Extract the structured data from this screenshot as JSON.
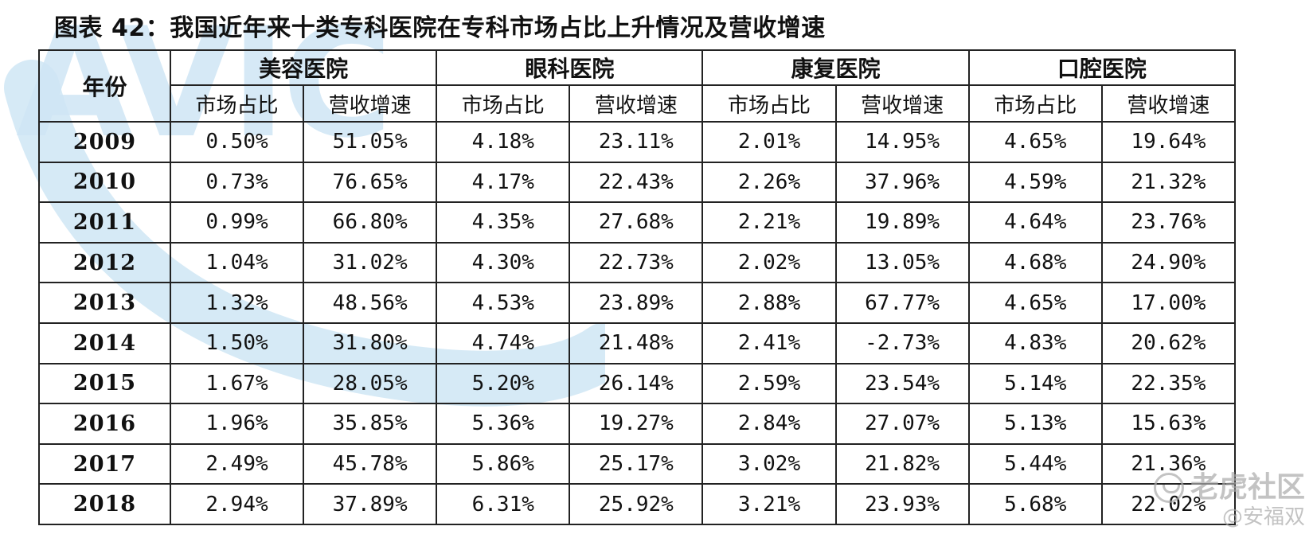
{
  "title": "图表 42：我国近年来十类专科医院在专科市场占比上升情况及营收增速",
  "watermark": {
    "logo_text": "AVIC",
    "brand": "老虎社区",
    "user": "@安福双",
    "logo_color": "#cfe6f5"
  },
  "table": {
    "year_header": "年份",
    "groups": [
      {
        "name": "美容医院",
        "sub": [
          "市场占比",
          "营收增速"
        ]
      },
      {
        "name": "眼科医院",
        "sub": [
          "市场占比",
          "营收增速"
        ]
      },
      {
        "name": "康复医院",
        "sub": [
          "市场占比",
          "营收增速"
        ]
      },
      {
        "name": "口腔医院",
        "sub": [
          "市场占比",
          "营收增速"
        ]
      }
    ],
    "rows": [
      {
        "year": "2009",
        "values": [
          "0.50%",
          "51.05%",
          "4.18%",
          "23.11%",
          "2.01%",
          "14.95%",
          "4.65%",
          "19.64%"
        ]
      },
      {
        "year": "2010",
        "values": [
          "0.73%",
          "76.65%",
          "4.17%",
          "22.43%",
          "2.26%",
          "37.96%",
          "4.59%",
          "21.32%"
        ]
      },
      {
        "year": "2011",
        "values": [
          "0.99%",
          "66.80%",
          "4.35%",
          "27.68%",
          "2.21%",
          "19.89%",
          "4.64%",
          "23.76%"
        ]
      },
      {
        "year": "2012",
        "values": [
          "1.04%",
          "31.02%",
          "4.30%",
          "22.73%",
          "2.02%",
          "13.05%",
          "4.68%",
          "24.90%"
        ]
      },
      {
        "year": "2013",
        "values": [
          "1.32%",
          "48.56%",
          "4.53%",
          "23.89%",
          "2.88%",
          "67.77%",
          "4.65%",
          "17.00%"
        ]
      },
      {
        "year": "2014",
        "values": [
          "1.50%",
          "31.80%",
          "4.74%",
          "21.48%",
          "2.41%",
          "-2.73%",
          "4.83%",
          "20.62%"
        ]
      },
      {
        "year": "2015",
        "values": [
          "1.67%",
          "28.05%",
          "5.20%",
          "26.14%",
          "2.59%",
          "23.54%",
          "5.14%",
          "22.35%"
        ]
      },
      {
        "year": "2016",
        "values": [
          "1.96%",
          "35.85%",
          "5.36%",
          "19.27%",
          "2.84%",
          "27.07%",
          "5.13%",
          "15.63%"
        ]
      },
      {
        "year": "2017",
        "values": [
          "2.49%",
          "45.78%",
          "5.86%",
          "25.17%",
          "3.02%",
          "21.82%",
          "5.44%",
          "21.36%"
        ]
      },
      {
        "year": "2018",
        "values": [
          "2.94%",
          "37.89%",
          "6.31%",
          "25.92%",
          "3.21%",
          "23.93%",
          "5.68%",
          "22.02%"
        ]
      }
    ]
  }
}
